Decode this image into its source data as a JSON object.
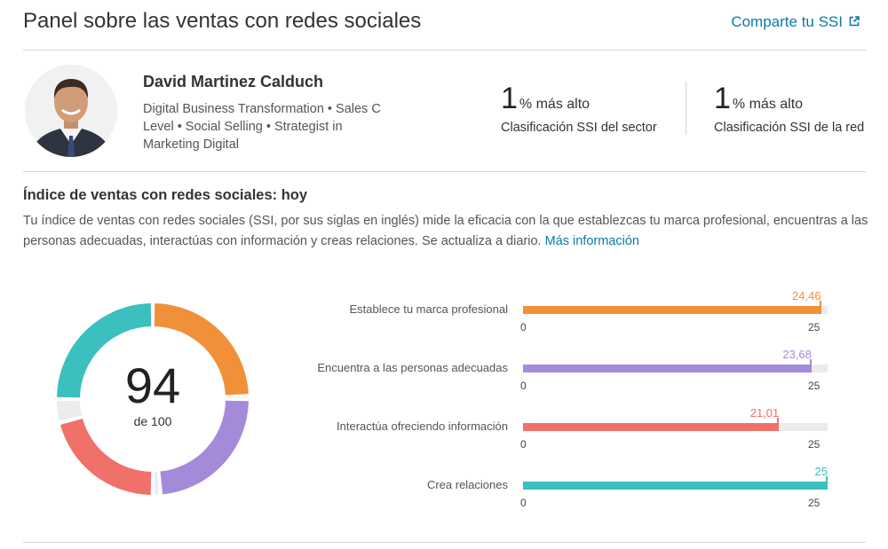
{
  "header": {
    "title": "Panel sobre las ventas con redes sociales",
    "share_label": "Comparte tu SSI"
  },
  "profile": {
    "name": "David Martinez Calduch",
    "headline": "Digital Business Transformation • Sales C Level • Social Selling • Strategist in Marketing Digital"
  },
  "rankings": [
    {
      "value": "1",
      "suffix": "% más alto",
      "label": "Clasificación SSI del sector"
    },
    {
      "value": "1",
      "suffix": "% más alto",
      "label": "Clasificación SSI de la red"
    }
  ],
  "ssi": {
    "title": "Índice de ventas con redes sociales: hoy",
    "description": "Tu índice de ventas con redes sociales (SSI, por sus siglas en inglés) mide la eficacia con la que establezcas tu marca profesional, encuentras a las personas adecuadas, interactúas con información y creas relaciones. Se actualiza a diario.",
    "more_link": "Más información",
    "score": "94",
    "score_of": "de 100"
  },
  "colors": {
    "accent_link": "#0a7aa8",
    "orange": "#f0913a",
    "purple": "#a48ad8",
    "red": "#f0706a",
    "teal": "#3bbfbf",
    "track": "#ebebeb"
  },
  "chart_data": {
    "type": "bar",
    "orientation": "horizontal",
    "total": 94,
    "max_total": 100,
    "categories": [
      "Establece tu marca profesional",
      "Encuentra a las personas adecuadas",
      "Interactúa ofreciendo información",
      "Crea relaciones"
    ],
    "values": [
      24.46,
      23.68,
      21.01,
      25
    ],
    "value_labels": [
      "24,46",
      "23,68",
      "21,01",
      "25"
    ],
    "xlim": [
      0,
      25
    ],
    "x_ticks": [
      "0",
      "25"
    ],
    "colors": [
      "#f0913a",
      "#a48ad8",
      "#f0706a",
      "#3bbfbf"
    ],
    "donut_order": [
      0,
      1,
      2,
      3
    ],
    "grid": false
  }
}
